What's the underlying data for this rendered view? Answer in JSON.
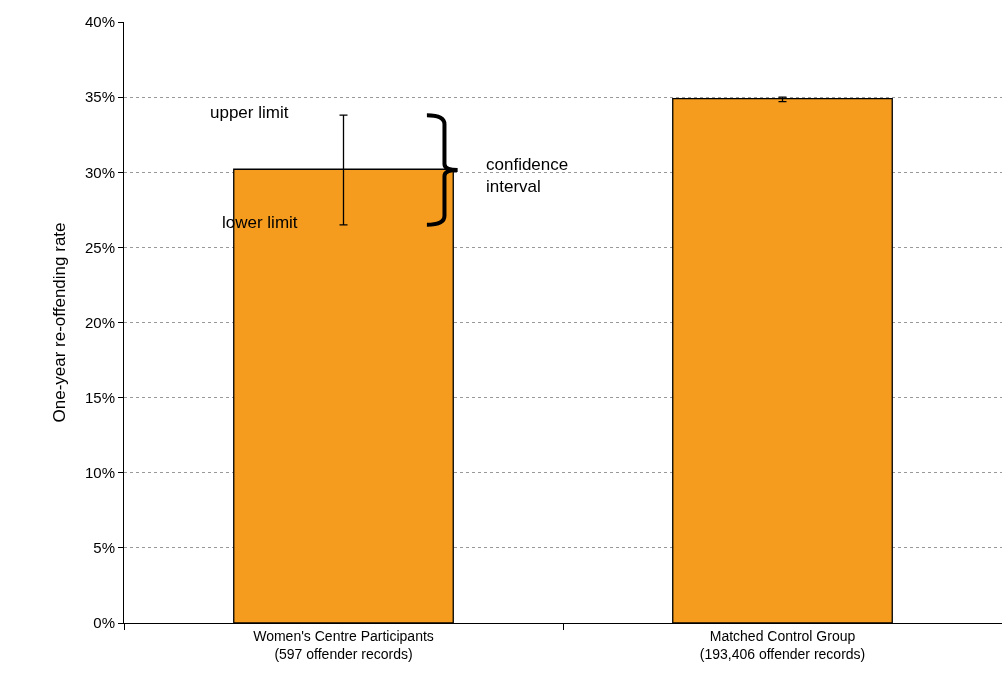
{
  "chart_data": {
    "type": "bar",
    "categories": [
      "Women's Centre Participants\n(597 offender records)",
      "Matched Control Group\n(193,406 offender records)"
    ],
    "values": [
      30.2,
      34.9
    ],
    "errors": [
      [
        26.5,
        33.8
      ],
      [
        34.7,
        35.0
      ]
    ],
    "color": "#f59c1e",
    "ylabel": "One-year re-offending rate",
    "ylim": [
      0,
      40
    ],
    "yticks": [
      {
        "value": 0,
        "label": "0%"
      },
      {
        "value": 5,
        "label": "5%"
      },
      {
        "value": 10,
        "label": "10%"
      },
      {
        "value": 15,
        "label": "15%"
      },
      {
        "value": 20,
        "label": "20%"
      },
      {
        "value": 25,
        "label": "25%"
      },
      {
        "value": 30,
        "label": "30%"
      },
      {
        "value": 35,
        "label": "35%"
      },
      {
        "value": 40,
        "label": "40%"
      }
    ],
    "grid": "y",
    "annotations": [
      "upper limit",
      "lower limit",
      "confidence interval"
    ]
  }
}
